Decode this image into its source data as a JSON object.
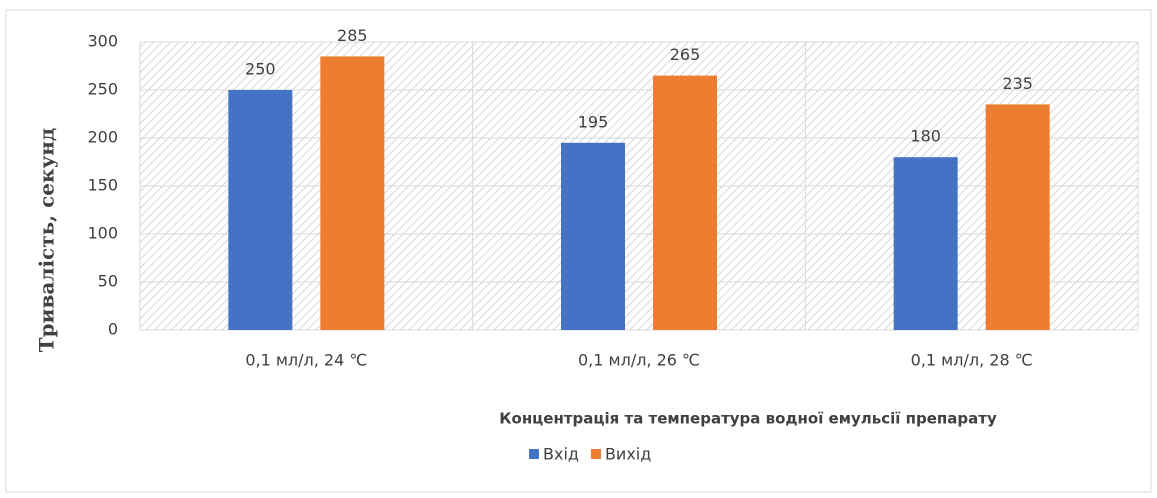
{
  "chart_data": {
    "type": "bar",
    "y_label": "Тривалість, секунд",
    "x_label": "Концентрація та температура водної емульсії препарату",
    "categories": [
      "0,1 мл/л, 24 ℃",
      "0,1 мл/л, 26 ℃",
      "0,1 мл/л, 28 ℃"
    ],
    "series": [
      {
        "name": "Вхід",
        "color": "#4472c4",
        "values": [
          250,
          195,
          180
        ]
      },
      {
        "name": "Вихід",
        "color": "#ed7d31",
        "values": [
          285,
          265,
          235
        ]
      }
    ],
    "ylim": [
      0,
      300
    ],
    "yticks": [
      0,
      50,
      100,
      150,
      200,
      250,
      300
    ],
    "grid": true,
    "legend": "bottom"
  }
}
